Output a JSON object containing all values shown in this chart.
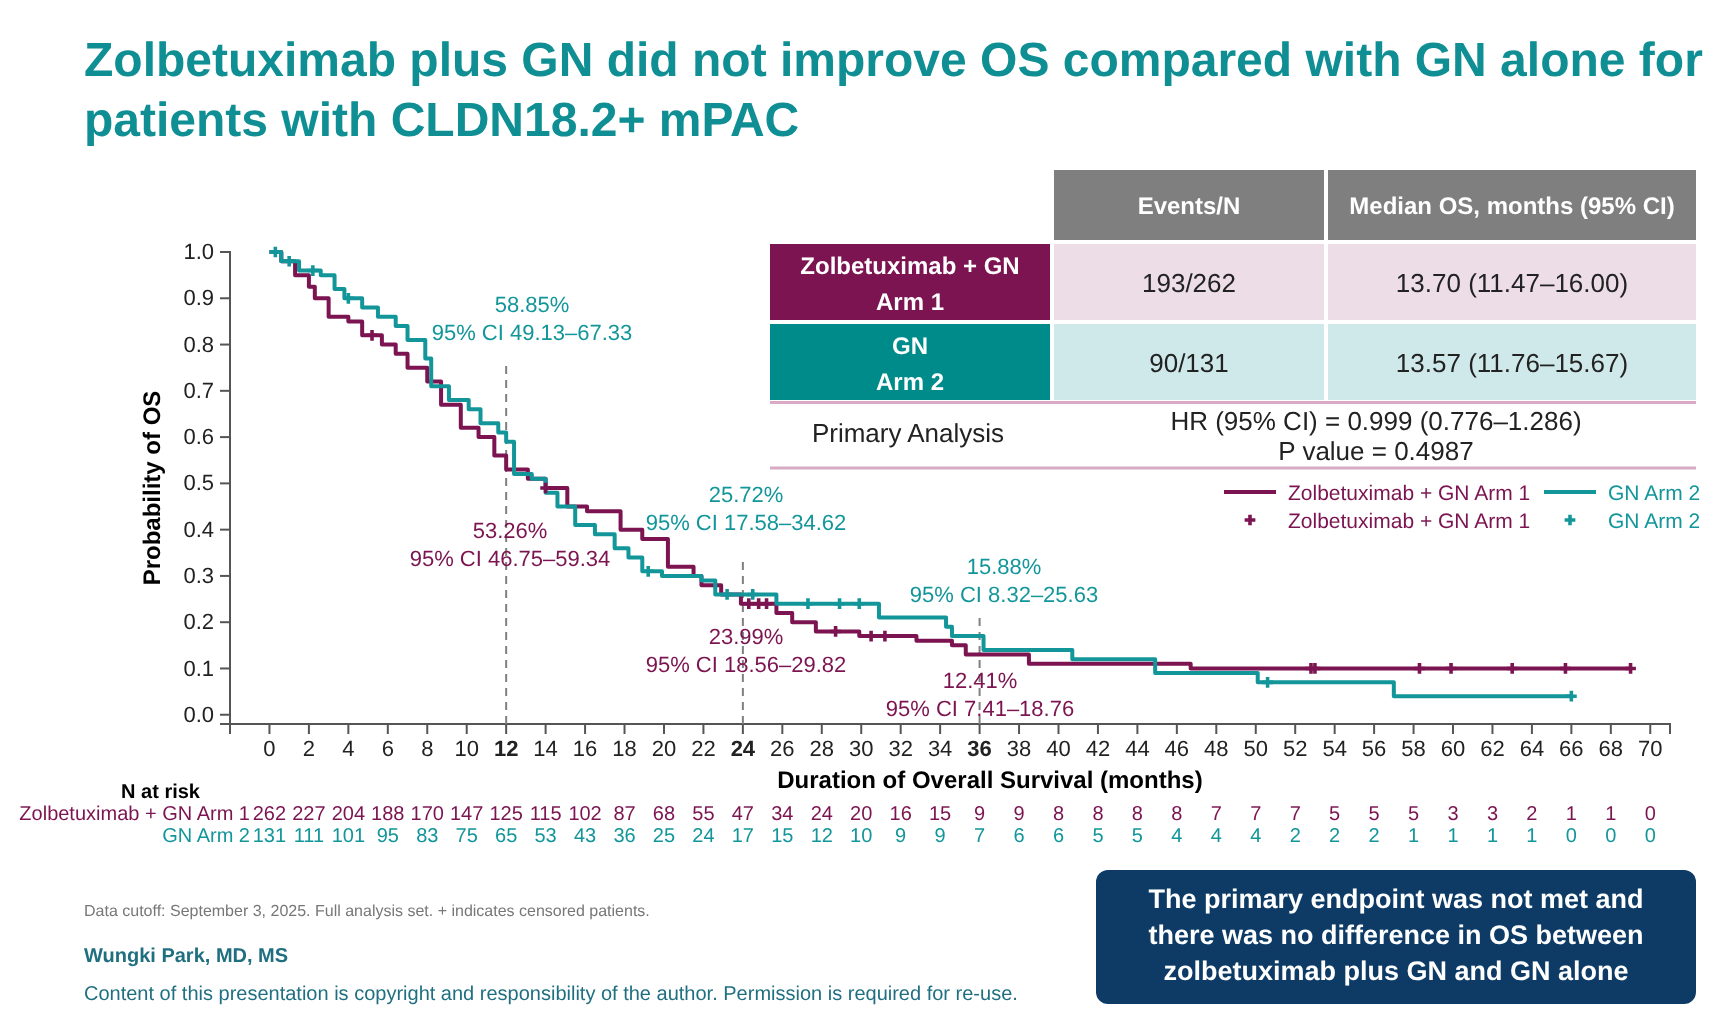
{
  "chart_data": {
    "type": "step",
    "title": "Zolbetuximab plus GN did not improve OS compared with GN alone for patients with CLDN18.2+ mPAC",
    "xlabel": "Duration of Overall Survival (months)",
    "ylabel": "Probability of OS",
    "xlim": [
      -2,
      71
    ],
    "ylim": [
      -0.02,
      1.0
    ],
    "xticks": [
      0,
      2,
      4,
      6,
      8,
      10,
      12,
      14,
      16,
      18,
      20,
      22,
      24,
      26,
      28,
      30,
      32,
      34,
      36,
      38,
      40,
      42,
      44,
      46,
      48,
      50,
      52,
      54,
      56,
      58,
      60,
      62,
      64,
      66,
      68,
      70
    ],
    "yticks": [
      {
        "value": 0,
        "label": "0.0"
      },
      {
        "value": 0.1,
        "label": "0.1"
      },
      {
        "value": 0.2,
        "label": "0.2"
      },
      {
        "value": 0.3,
        "label": "0.3"
      },
      {
        "value": 0.4,
        "label": "0.4"
      },
      {
        "value": 0.5,
        "label": "0.5"
      },
      {
        "value": 0.6,
        "label": "0.6"
      },
      {
        "value": 0.7,
        "label": "0.7"
      },
      {
        "value": 0.8,
        "label": "0.8"
      },
      {
        "value": 0.9,
        "label": "0.9"
      },
      {
        "value": 1,
        "label": "1.0"
      }
    ],
    "legend": "right",
    "line_style": "solid",
    "series": [
      {
        "name": "Zolbetuximab + GN Arm 1",
        "color": "#7b1450",
        "x": [
          0,
          0.6,
          1.3,
          2,
          2.3,
          3,
          4,
          4.7,
          5.7,
          6.4,
          7,
          8,
          8.7,
          9.7,
          10.6,
          11.4,
          12,
          13.1,
          14,
          15.1,
          16.1,
          17.8,
          18.9,
          20.2,
          21.5,
          21.9,
          22.9,
          23.9,
          25.7,
          26.5,
          27.7,
          29.9,
          32.8,
          34.6,
          35.3,
          38.5,
          46.7,
          69
        ],
        "values": [
          1,
          0.98,
          0.95,
          0.925,
          0.9,
          0.86,
          0.85,
          0.82,
          0.8,
          0.78,
          0.75,
          0.72,
          0.67,
          0.62,
          0.6,
          0.56,
          0.53,
          0.51,
          0.49,
          0.45,
          0.44,
          0.4,
          0.38,
          0.32,
          0.3,
          0.28,
          0.26,
          0.24,
          0.22,
          0.2,
          0.18,
          0.17,
          0.16,
          0.15,
          0.13,
          0.11,
          0.1,
          0.1
        ]
      },
      {
        "name": "GN Arm 2",
        "color": "#13969a",
        "x": [
          0,
          0.6,
          1.5,
          2.6,
          3.3,
          3.8,
          4.7,
          5.5,
          6.4,
          7,
          7.9,
          8.2,
          9.1,
          10.1,
          10.7,
          11.6,
          12,
          12.4,
          13.3,
          14,
          14.6,
          15.5,
          16.5,
          17.5,
          18.2,
          18.9,
          19.9,
          21.9,
          22.6,
          23.8,
          25.7,
          30.9,
          34.3,
          34.6,
          36.2,
          40.7,
          44.9,
          50.1,
          57,
          66
        ],
        "values": [
          1,
          0.98,
          0.96,
          0.95,
          0.92,
          0.9,
          0.88,
          0.86,
          0.84,
          0.81,
          0.77,
          0.71,
          0.68,
          0.66,
          0.63,
          0.61,
          0.59,
          0.52,
          0.51,
          0.48,
          0.45,
          0.41,
          0.39,
          0.36,
          0.34,
          0.31,
          0.3,
          0.29,
          0.26,
          0.26,
          0.24,
          0.21,
          0.19,
          0.17,
          0.14,
          0.12,
          0.09,
          0.07,
          0.04,
          0.04
        ]
      },
      {
        "name": "Zolbetuximab + GN Arm 1",
        "type": "scatter",
        "marker": "cross",
        "color": "#7b1450",
        "x": [
          5.2,
          14,
          24.3,
          24.8,
          25.2,
          28.7,
          30.5,
          31.2,
          52.8,
          53,
          58.3,
          59.9,
          63,
          65.7,
          69
        ],
        "values": [
          0.82,
          0.49,
          0.24,
          0.24,
          0.24,
          0.18,
          0.17,
          0.17,
          0.1,
          0.1,
          0.1,
          0.1,
          0.1,
          0.1,
          0.1
        ]
      },
      {
        "name": "GN Arm 2",
        "type": "scatter",
        "marker": "cross",
        "color": "#13969a",
        "x": [
          0.3,
          1.0,
          2.2,
          4.0,
          19.2,
          23.2,
          24.5,
          27.3,
          28.9,
          29.9,
          50.6,
          66
        ],
        "values": [
          1,
          0.98,
          0.96,
          0.9,
          0.31,
          0.26,
          0.26,
          0.24,
          0.24,
          0.24,
          0.07,
          0.04
        ]
      }
    ],
    "ref_lines": [
      {
        "axis": "x",
        "value": 12,
        "line_style": "dashed",
        "color": "#808080"
      },
      {
        "axis": "x",
        "value": 24,
        "line_style": "dashed",
        "color": "#808080"
      },
      {
        "axis": "x",
        "value": 36,
        "line_style": "dashed",
        "color": "#808080"
      }
    ],
    "annotations": [
      "58.85%\n95% CI 49.13–67.33",
      "53.26%\n95% CI 46.75–59.34",
      "25.72%\n95% CI 17.58–34.62",
      "23.99%\n95% CI 18.56–29.82",
      "15.88%\n95% CI 8.32–25.63",
      "12.41%\n95% CI 7.41–18.76",
      "Events/N",
      "Median OS, months (95% CI)",
      "Zolbetuximab + GN\nArm 1",
      "193/262",
      "13.70 (11.47–16.00)",
      "GN\nArm 2",
      "90/131",
      "13.57 (11.76–15.67)",
      "Primary Analysis",
      "HR (95% CI) = 0.999 (0.776–1.286)",
      "P value = 0.4987",
      "N at risk",
      "Zolbetuximab + GN Arm 1",
      "262 227 204 188 170 147 125 115 102 87 68 55 47 34 24 20 16 15 9 9 8 8 8 8 7 7 7 5 5 5 3 3 2 1 1 0",
      "GN Arm 2",
      "131 111 101 95 83 75 65 53 43 36 25 24 17 15 12 10 9 9 7 6 6 5 5 4 4 4 2 2 2 1 1 1 1 0 0 0",
      "Data cutoff: September 3, 2025. Full analysis set. + indicates censored patients.",
      "Wungki Park, MD, MS",
      "Content of this presentation is copyright and responsibility of the author. Permission is required for re-use.",
      "The primary endpoint was not met and\nthere was no difference in OS between\nzolbetuximab plus GN and GN alone"
    ]
  }
}
